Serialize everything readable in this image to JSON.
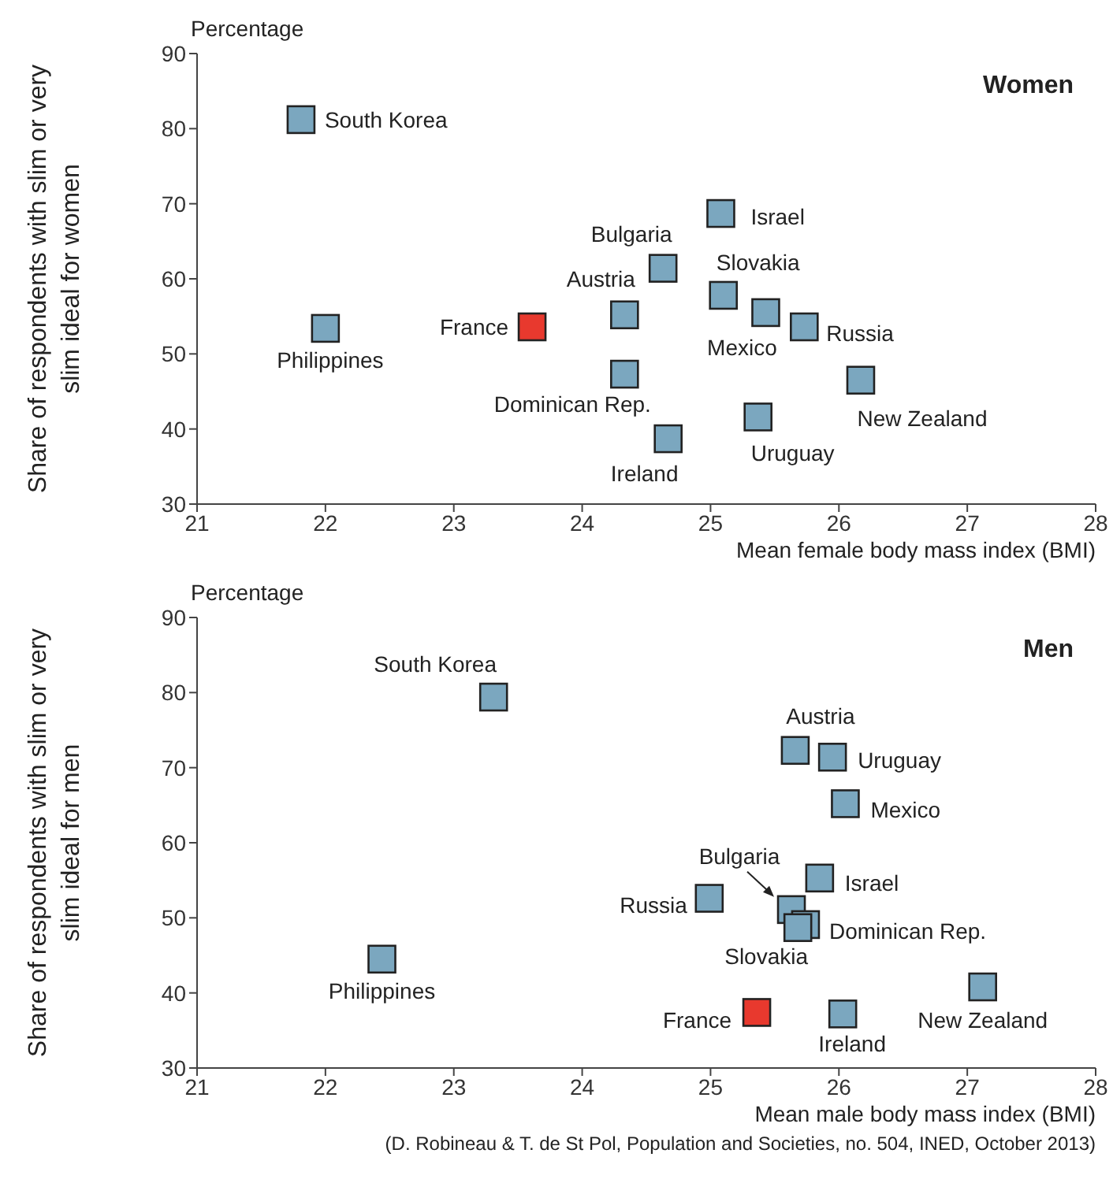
{
  "chart_data": [
    {
      "type": "scatter",
      "title": "Women",
      "xlabel": "Mean female body mass index (BMI)",
      "ylabel": "Share of respondents with slim or very slim ideal for women",
      "marker": "square",
      "x": [
        21.81,
        22.0,
        23.61,
        24.33,
        24.33,
        24.63,
        24.67,
        25.08,
        25.1,
        25.43,
        25.37,
        25.73,
        26.17
      ],
      "values": [
        81.2,
        53.4,
        53.6,
        55.2,
        47.3,
        61.4,
        38.7,
        68.7,
        57.8,
        55.5,
        41.6,
        53.6,
        46.5
      ],
      "colors": [
        "#7ba7bf",
        "#7ba7bf",
        "#e8392e",
        "#7ba7bf",
        "#7ba7bf",
        "#7ba7bf",
        "#7ba7bf",
        "#7ba7bf",
        "#7ba7bf",
        "#7ba7bf",
        "#7ba7bf",
        "#7ba7bf",
        "#7ba7bf"
      ],
      "xlim": [
        21,
        28
      ],
      "xticks": [
        21,
        22,
        23,
        24,
        25,
        26,
        27,
        28
      ],
      "ylim": [
        30,
        90
      ],
      "yticks": [
        30,
        40,
        50,
        60,
        70,
        80,
        90
      ],
      "annotations": [
        "Percentage",
        {
          "text": "South Korea",
          "x": 21.81,
          "y": 81.2
        },
        {
          "text": "Philippines",
          "x": 22.0,
          "y": 53.4
        },
        {
          "text": "France",
          "x": 23.61,
          "y": 53.6
        },
        {
          "text": "Austria",
          "x": 24.33,
          "y": 55.2
        },
        {
          "text": "Dominican Rep.",
          "x": 24.33,
          "y": 47.3
        },
        {
          "text": "Bulgaria",
          "x": 24.63,
          "y": 61.4
        },
        {
          "text": "Ireland",
          "x": 24.67,
          "y": 38.7
        },
        {
          "text": "Israel",
          "x": 25.08,
          "y": 68.7
        },
        {
          "text": "Slovakia",
          "x": 25.1,
          "y": 57.8
        },
        {
          "text": "Mexico",
          "x": 25.43,
          "y": 55.5
        },
        {
          "text": "Uruguay",
          "x": 25.37,
          "y": 41.6
        },
        {
          "text": "Russia",
          "x": 25.73,
          "y": 53.6
        },
        {
          "text": "New Zealand",
          "x": 26.17,
          "y": 46.5
        }
      ]
    },
    {
      "type": "scatter",
      "title": "Men",
      "xlabel": "Mean male body mass index (BMI)",
      "ylabel": "Share of respondents with slim or very slim ideal for men",
      "marker": "square",
      "x": [
        23.31,
        22.44,
        25.66,
        25.95,
        26.05,
        25.85,
        24.99,
        25.63,
        25.74,
        25.68,
        25.36,
        26.03,
        27.12
      ],
      "values": [
        79.4,
        44.5,
        72.3,
        71.4,
        65.2,
        55.3,
        52.6,
        51.1,
        49.1,
        48.7,
        37.4,
        37.2,
        40.8
      ],
      "colors": [
        "#7ba7bf",
        "#7ba7bf",
        "#7ba7bf",
        "#7ba7bf",
        "#7ba7bf",
        "#7ba7bf",
        "#7ba7bf",
        "#7ba7bf",
        "#7ba7bf",
        "#7ba7bf",
        "#e8392e",
        "#7ba7bf",
        "#7ba7bf"
      ],
      "xlim": [
        21,
        28
      ],
      "xticks": [
        21,
        22,
        23,
        24,
        25,
        26,
        27,
        28
      ],
      "ylim": [
        30,
        90
      ],
      "yticks": [
        30,
        40,
        50,
        60,
        70,
        80,
        90
      ],
      "annotations": [
        "Percentage",
        "(D. Robineau & T. de St Pol, Population and Societies, no. 504, INED, October 2013)",
        {
          "text": "South Korea",
          "x": 23.31,
          "y": 79.4
        },
        {
          "text": "Philippines",
          "x": 22.44,
          "y": 44.5
        },
        {
          "text": "Austria",
          "x": 25.66,
          "y": 72.3
        },
        {
          "text": "Uruguay",
          "x": 25.95,
          "y": 71.4
        },
        {
          "text": "Mexico",
          "x": 26.05,
          "y": 65.2
        },
        {
          "text": "Israel",
          "x": 25.85,
          "y": 55.3
        },
        {
          "text": "Russia",
          "x": 24.99,
          "y": 52.6
        },
        {
          "text": "Bulgaria",
          "x": 25.63,
          "y": 51.1
        },
        {
          "text": "Dominican Rep.",
          "x": 25.74,
          "y": 49.1
        },
        {
          "text": "Slovakia",
          "x": 25.68,
          "y": 48.7
        },
        {
          "text": "France",
          "x": 25.36,
          "y": 37.4
        },
        {
          "text": "Ireland",
          "x": 26.03,
          "y": 37.2
        },
        {
          "text": "New Zealand",
          "x": 27.12,
          "y": 40.8
        }
      ]
    }
  ]
}
